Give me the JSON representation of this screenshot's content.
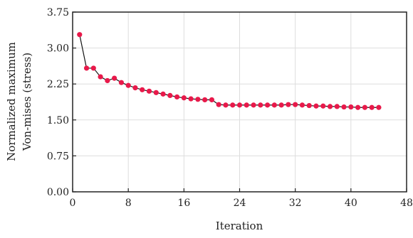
{
  "chart_data": {
    "type": "line",
    "title": "",
    "xlabel": "Iteration",
    "ylabel_lines": [
      "Normalized maximum",
      "Von-mises (stress)"
    ],
    "xlim": [
      0,
      48
    ],
    "ylim": [
      0,
      3.75
    ],
    "x_ticks": [
      "0",
      "8",
      "16",
      "24",
      "32",
      "40",
      "48"
    ],
    "y_ticks": [
      "0.00",
      "0.75",
      "1.50",
      "2.25",
      "3.00",
      "3.75"
    ],
    "grid": true,
    "colors": {
      "marker": "#e8194a",
      "line": "#111111",
      "grid": "#dddddd",
      "axis": "#222222"
    },
    "series": [
      {
        "x": [
          1,
          2,
          3,
          4,
          5,
          6,
          7,
          8,
          9,
          10,
          11,
          12,
          13,
          14,
          15,
          16,
          17,
          18,
          19,
          20,
          21,
          22,
          23,
          24,
          25,
          26,
          27,
          28,
          29,
          30,
          31,
          32,
          33,
          34,
          35,
          36,
          37,
          38,
          39,
          40,
          41,
          42,
          43,
          44
        ],
        "values": [
          3.28,
          2.58,
          2.58,
          2.4,
          2.32,
          2.37,
          2.28,
          2.22,
          2.17,
          2.13,
          2.1,
          2.07,
          2.04,
          2.01,
          1.98,
          1.96,
          1.94,
          1.93,
          1.92,
          1.92,
          1.82,
          1.81,
          1.81,
          1.81,
          1.81,
          1.81,
          1.81,
          1.81,
          1.81,
          1.81,
          1.82,
          1.82,
          1.81,
          1.8,
          1.79,
          1.79,
          1.78,
          1.78,
          1.77,
          1.77,
          1.76,
          1.76,
          1.76,
          1.76
        ]
      }
    ]
  }
}
